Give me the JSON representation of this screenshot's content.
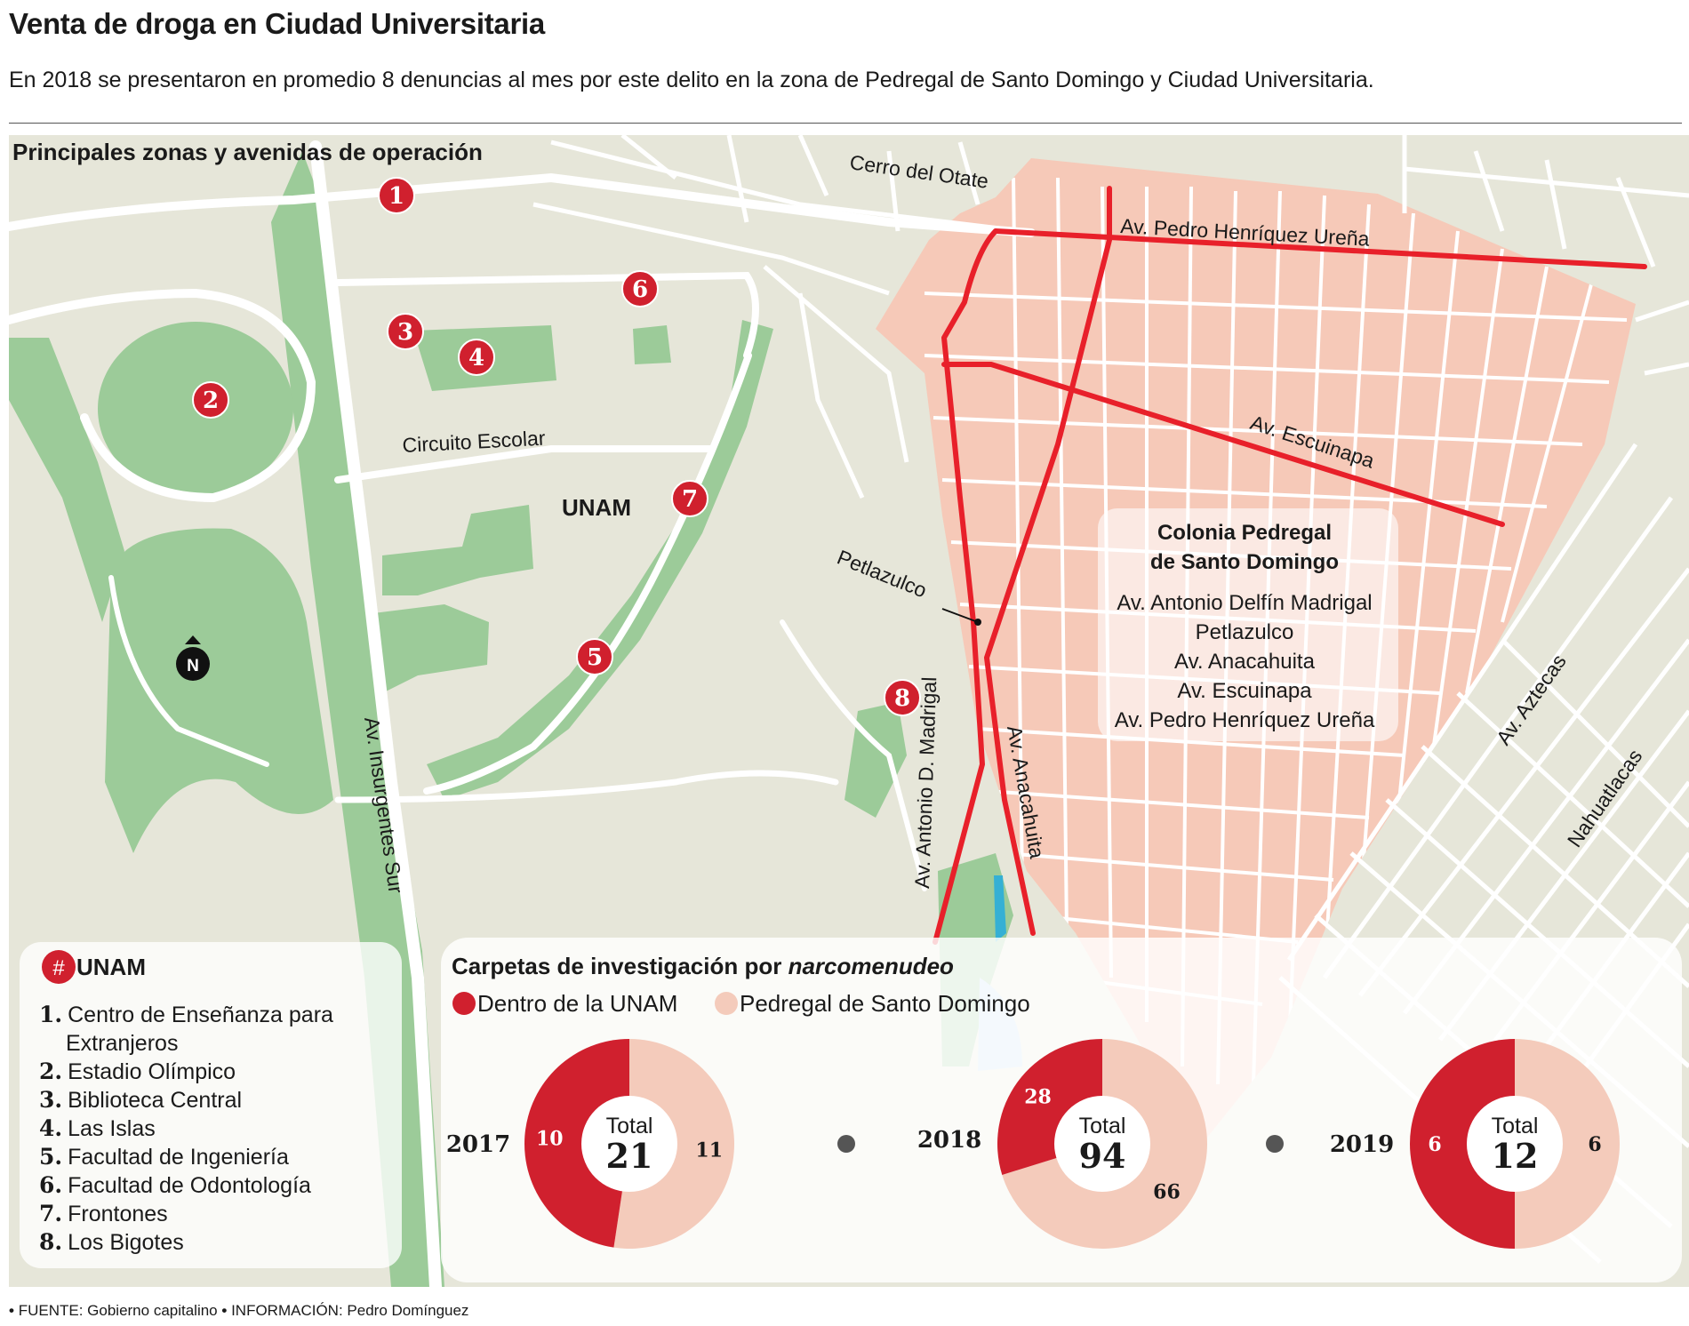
{
  "header": {
    "title": "Venta de droga en Ciudad Universitaria",
    "subtitle": "En 2018 se presentaron en promedio 8 denuncias al mes por este delito en la zona de Pedregal de Santo Domingo y Ciudad Universitaria."
  },
  "map": {
    "title": "Principales zonas y avenidas de operación",
    "area_label": "UNAM",
    "north_label": "N",
    "street_labels": {
      "cerro_del_otate": "Cerro del Otate",
      "pedro_henriquez_urena": "Av. Pedro Henríquez Ureña",
      "escuinapa": "Av. Escuinapa",
      "circuito_escolar": "Circuito Escolar",
      "petlazulco": "Petlazulco",
      "antonio_d_madrigal": "Av. Antonio D. Madrigal",
      "anacahuita": "Av. Anacahuita",
      "insurgentes_sur": "Av. Insurgentes Sur",
      "aztecas": "Av. Aztecas",
      "nahuatlacas": "Nahuatlacas"
    },
    "markers": [
      "1",
      "2",
      "3",
      "4",
      "5",
      "6",
      "7",
      "8"
    ],
    "colonia_box": {
      "title_line1": "Colonia Pedregal",
      "title_line2": "de Santo Domingo",
      "streets": [
        "Av. Antonio Delfín Madrigal",
        "Petlazulco",
        "Av. Anacahuita",
        "Av. Escuinapa",
        "Av. Pedro Henríquez Ureña"
      ]
    },
    "colors": {
      "background": "#e6e6d9",
      "roads": "#ffffff",
      "green_areas": "#9ccb99",
      "pedregal_zone": "#f6c9b8",
      "avenues": "#e8202a",
      "marker": "#d0202e",
      "water": "#35b0d4"
    }
  },
  "legend": {
    "marker_symbol": "#",
    "heading": "UNAM",
    "items": [
      {
        "num": "1.",
        "label": "Centro de Enseñanza para",
        "label2": "Extranjeros"
      },
      {
        "num": "2.",
        "label": "Estadio Olímpico"
      },
      {
        "num": "3.",
        "label": "Biblioteca Central"
      },
      {
        "num": "4.",
        "label": "Las Islas"
      },
      {
        "num": "5.",
        "label": "Facultad de Ingeniería"
      },
      {
        "num": "6.",
        "label": "Facultad de Odontología"
      },
      {
        "num": "7.",
        "label": "Frontones"
      },
      {
        "num": "8.",
        "label": "Los Bigotes"
      }
    ]
  },
  "chart_data": {
    "type": "pie",
    "title": "Carpetas de investigación por ",
    "title_italic": "narcomenudeo",
    "series_names": [
      "Dentro de la UNAM",
      "Pedregal de Santo Domingo"
    ],
    "colors": [
      "#d0202e",
      "#f4cbbb"
    ],
    "total_label": "Total",
    "donuts": [
      {
        "year": "2017",
        "unam": 10,
        "pedregal": 11,
        "total": 21
      },
      {
        "year": "2018",
        "unam": 28,
        "pedregal": 66,
        "total": 94
      },
      {
        "year": "2019",
        "unam": 6,
        "pedregal": 6,
        "total": 12
      }
    ]
  },
  "footer": {
    "source_label": "FUENTE:",
    "source_value": "Gobierno capitalino",
    "info_label": "INFORMACIÓN:",
    "info_value": "Pedro Domínguez"
  }
}
